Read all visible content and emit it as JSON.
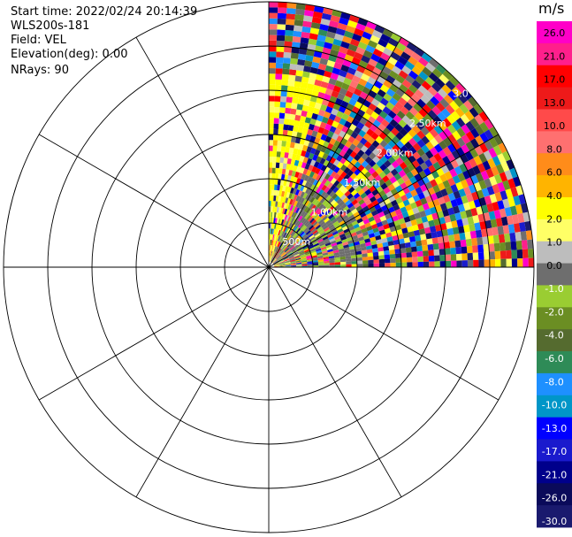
{
  "info": {
    "start_time": "Start time: 2022/02/24 20:14:39",
    "station": "WLS200s-181",
    "field": "Field: VEL",
    "elevation": "Elevation(deg): 0.00",
    "nrays": "NRays: 90"
  },
  "chart_data": {
    "type": "heatmap",
    "projection": "polar-ppi",
    "field": "VEL",
    "range_rings_km": [
      0.5,
      1.0,
      1.5,
      2.0,
      2.5,
      3.0
    ],
    "ring_labels": [
      "500m",
      "1.00km",
      "1.50km",
      "2.00km",
      "2.50km",
      "3.0"
    ],
    "max_range_km": 3.0,
    "azimuth_coverage_deg": [
      0,
      90
    ],
    "spokes_deg": [
      0,
      30,
      60,
      90,
      120,
      150,
      180,
      210,
      240,
      270,
      300,
      330
    ],
    "colorbar": {
      "unit": "m/s",
      "tick_labels": [
        "26.0",
        "21.0",
        "17.0",
        "13.0",
        "10.0",
        "8.0",
        "6.0",
        "4.0",
        "2.0",
        "1.0",
        "0.0",
        "-1.0",
        "-2.0",
        "-4.0",
        "-6.0",
        "-8.0",
        "-10.0",
        "-13.0",
        "-17.0",
        "-21.0",
        "-26.0",
        "-30.0"
      ],
      "colors": [
        "#ff00c8",
        "#ff1f8c",
        "#ff0000",
        "#ee1a1a",
        "#ff4a4a",
        "#ff7070",
        "#ff8c1a",
        "#ffb400",
        "#ffff00",
        "#ffff66",
        "#bdbdbd",
        "#6e6e6e",
        "#9acd32",
        "#6b8e23",
        "#556b2f",
        "#2e8b57",
        "#1e90ff",
        "#0096c8",
        "#0000ff",
        "#1a1acd",
        "#00008b",
        "#0a0a5a",
        "#1a1a6e"
      ]
    }
  }
}
